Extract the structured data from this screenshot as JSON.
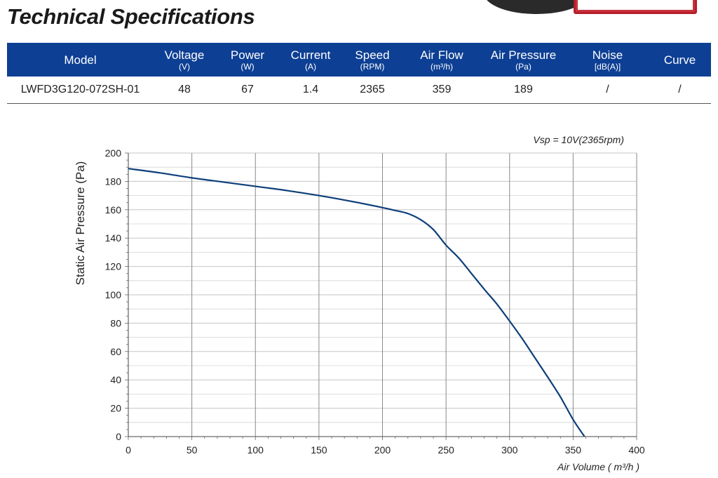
{
  "page": {
    "title": "Technical Specifications"
  },
  "spec_table": {
    "headers": [
      {
        "label": "Model",
        "unit": ""
      },
      {
        "label": "Voltage",
        "unit": "(V)"
      },
      {
        "label": "Power",
        "unit": "(W)"
      },
      {
        "label": "Current",
        "unit": "(A)"
      },
      {
        "label": "Speed",
        "unit": "(RPM)"
      },
      {
        "label": "Air Flow",
        "unit": "(m³/h)"
      },
      {
        "label": "Air Pressure",
        "unit": "(Pa)"
      },
      {
        "label": "Noise",
        "unit": "[dB(A)]"
      },
      {
        "label": "Curve",
        "unit": ""
      }
    ],
    "rows": [
      [
        "LWFD3G120-072SH-01",
        "48",
        "67",
        "1.4",
        "2365",
        "359",
        "189",
        "/",
        "/"
      ]
    ]
  },
  "colors": {
    "header_bg": "#0d3f94",
    "curve": "#0d3f7a",
    "grid_major": "#8a8a8a",
    "grid_minor": "#d4d4d4"
  },
  "chart_data": {
    "type": "line",
    "title": "",
    "annotation": "Vsp = 10V(2365rpm)",
    "xlabel": "Air Volume ( m³/h )",
    "ylabel": "Static Air Pressure  (Pa)",
    "xlim": [
      0,
      400
    ],
    "ylim": [
      0,
      200
    ],
    "xticks": [
      0,
      50,
      100,
      150,
      200,
      250,
      300,
      350,
      400
    ],
    "yticks": [
      0,
      20,
      40,
      60,
      80,
      100,
      120,
      140,
      160,
      180,
      200
    ],
    "grid": true,
    "legend": "none",
    "series": [
      {
        "x": [
          0,
          25,
          50,
          75,
          100,
          125,
          150,
          175,
          200,
          210,
          220,
          230,
          240,
          250,
          260,
          270,
          280,
          290,
          300,
          310,
          320,
          330,
          340,
          350,
          359
        ],
        "y": [
          189,
          186,
          182.5,
          179.5,
          176.5,
          173.5,
          170,
          166,
          161.5,
          159.5,
          157.3,
          153,
          146,
          135,
          126,
          115,
          104,
          93.5,
          81.5,
          69,
          55.5,
          42,
          28,
          12,
          0
        ]
      }
    ]
  }
}
